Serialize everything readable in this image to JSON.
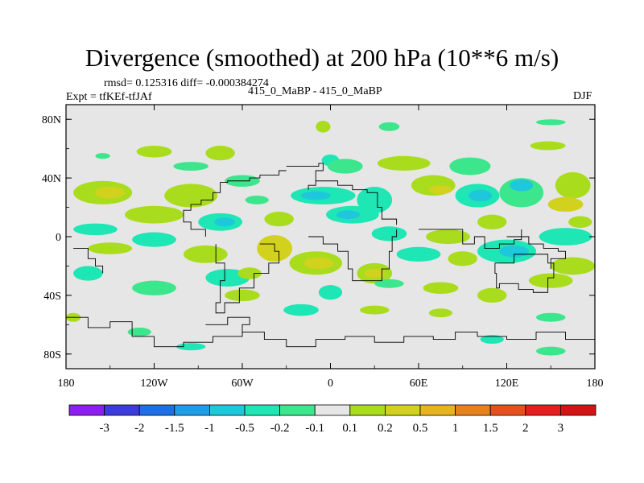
{
  "chart_data": {
    "type": "heatmap",
    "title": "Divergence (smoothed) at 200 hPa (10**6 m/s)",
    "stats_text": "rmsd= 0.125316  diff= -0.000384274",
    "left_label": "Expt = tfKEf-tfJAf",
    "center_label": "415_0_MaBP - 415_0_MaBP",
    "right_label": "DJF",
    "x_range": [
      -180,
      180
    ],
    "y_range": [
      -90,
      90
    ],
    "x_tick_labels": [
      "180",
      "120W",
      "60W",
      "0",
      "60E",
      "120E",
      "180"
    ],
    "x_tick_values": [
      -180,
      -120,
      -60,
      0,
      60,
      120,
      180
    ],
    "y_tick_labels": [
      "80N",
      "40N",
      "0",
      "40S",
      "80S"
    ],
    "y_tick_values": [
      80,
      40,
      0,
      -40,
      -80
    ],
    "colorbar": {
      "levels": [
        "-3",
        "-2",
        "-1.5",
        "-1",
        "-0.5",
        "-0.2",
        "-0.1",
        "0.1",
        "0.2",
        "0.5",
        "1",
        "1.5",
        "2",
        "3"
      ],
      "colors": [
        "#8c1ef0",
        "#3c3cdc",
        "#1e6ee6",
        "#1e9ee6",
        "#1ec8dc",
        "#1ee6b4",
        "#3ce68c",
        "#e6e6e6",
        "#aadc1e",
        "#d2d21e",
        "#e6b41e",
        "#e6821e",
        "#e6501e",
        "#e61e1e",
        "#d21414"
      ]
    },
    "fill_colors": {
      "background": "#e6e6e6",
      "cyan": "#1ec8dc",
      "teal": "#1ee6b4",
      "green": "#3ce68c",
      "lime": "#aadc1e",
      "olive": "#d2d21e",
      "orange": "#e6b41e"
    },
    "features": [
      {
        "lon": -120,
        "lat": 58,
        "rx": 12,
        "ry": 4,
        "c": "lime"
      },
      {
        "lon": -155,
        "lat": 55,
        "rx": 5,
        "ry": 2,
        "c": "green"
      },
      {
        "lon": -75,
        "lat": 57,
        "rx": 10,
        "ry": 5,
        "c": "lime"
      },
      {
        "lon": -95,
        "lat": 48,
        "rx": 12,
        "ry": 3,
        "c": "green"
      },
      {
        "lon": -5,
        "lat": 75,
        "rx": 5,
        "ry": 4,
        "c": "lime"
      },
      {
        "lon": 40,
        "lat": 75,
        "rx": 7,
        "ry": 3,
        "c": "green"
      },
      {
        "lon": 150,
        "lat": 78,
        "rx": 10,
        "ry": 2,
        "c": "green"
      },
      {
        "lon": 148,
        "lat": 62,
        "rx": 12,
        "ry": 3,
        "c": "lime"
      },
      {
        "lon": -60,
        "lat": 38,
        "rx": 12,
        "ry": 4,
        "c": "green"
      },
      {
        "lon": 0,
        "lat": 52,
        "rx": 6,
        "ry": 4,
        "c": "teal"
      },
      {
        "lon": 10,
        "lat": 48,
        "rx": 12,
        "ry": 5,
        "c": "green"
      },
      {
        "lon": 50,
        "lat": 50,
        "rx": 18,
        "ry": 5,
        "c": "lime"
      },
      {
        "lon": 95,
        "lat": 48,
        "rx": 14,
        "ry": 6,
        "c": "green"
      },
      {
        "lon": 130,
        "lat": 30,
        "rx": 15,
        "ry": 10,
        "c": "green"
      },
      {
        "lon": 165,
        "lat": 35,
        "rx": 12,
        "ry": 9,
        "c": "lime"
      },
      {
        "lon": 160,
        "lat": 22,
        "rx": 12,
        "ry": 5,
        "c": "olive"
      },
      {
        "lon": -155,
        "lat": 30,
        "rx": 20,
        "ry": 8,
        "c": "lime"
      },
      {
        "lon": -150,
        "lat": 30,
        "rx": 10,
        "ry": 4,
        "c": "olive"
      },
      {
        "lon": -95,
        "lat": 28,
        "rx": 18,
        "ry": 8,
        "c": "lime"
      },
      {
        "lon": -50,
        "lat": 25,
        "rx": 8,
        "ry": 3,
        "c": "green"
      },
      {
        "lon": -5,
        "lat": 28,
        "rx": 22,
        "ry": 6,
        "c": "teal"
      },
      {
        "lon": -10,
        "lat": 28,
        "rx": 10,
        "ry": 3,
        "c": "cyan"
      },
      {
        "lon": 30,
        "lat": 25,
        "rx": 12,
        "ry": 9,
        "c": "teal"
      },
      {
        "lon": 70,
        "lat": 35,
        "rx": 15,
        "ry": 7,
        "c": "lime"
      },
      {
        "lon": 75,
        "lat": 32,
        "rx": 8,
        "ry": 3,
        "c": "olive"
      },
      {
        "lon": 100,
        "lat": 28,
        "rx": 15,
        "ry": 8,
        "c": "teal"
      },
      {
        "lon": 102,
        "lat": 28,
        "rx": 8,
        "ry": 4,
        "c": "cyan"
      },
      {
        "lon": 130,
        "lat": 35,
        "rx": 8,
        "ry": 4,
        "c": "cyan"
      },
      {
        "lon": -160,
        "lat": 5,
        "rx": 15,
        "ry": 4,
        "c": "teal"
      },
      {
        "lon": -120,
        "lat": 15,
        "rx": 20,
        "ry": 6,
        "c": "lime"
      },
      {
        "lon": -75,
        "lat": 10,
        "rx": 15,
        "ry": 6,
        "c": "teal"
      },
      {
        "lon": -72,
        "lat": 10,
        "rx": 7,
        "ry": 3,
        "c": "cyan"
      },
      {
        "lon": -35,
        "lat": 12,
        "rx": 10,
        "ry": 5,
        "c": "lime"
      },
      {
        "lon": 15,
        "lat": 15,
        "rx": 18,
        "ry": 6,
        "c": "teal"
      },
      {
        "lon": 12,
        "lat": 15,
        "rx": 8,
        "ry": 3,
        "c": "cyan"
      },
      {
        "lon": 40,
        "lat": 2,
        "rx": 12,
        "ry": 5,
        "c": "teal"
      },
      {
        "lon": 80,
        "lat": 0,
        "rx": 15,
        "ry": 5,
        "c": "lime"
      },
      {
        "lon": 110,
        "lat": 10,
        "rx": 10,
        "ry": 5,
        "c": "lime"
      },
      {
        "lon": 160,
        "lat": 0,
        "rx": 18,
        "ry": 6,
        "c": "teal"
      },
      {
        "lon": 170,
        "lat": 10,
        "rx": 8,
        "ry": 4,
        "c": "lime"
      },
      {
        "lon": -150,
        "lat": -8,
        "rx": 15,
        "ry": 4,
        "c": "lime"
      },
      {
        "lon": -120,
        "lat": -2,
        "rx": 15,
        "ry": 5,
        "c": "teal"
      },
      {
        "lon": -85,
        "lat": -12,
        "rx": 15,
        "ry": 6,
        "c": "lime"
      },
      {
        "lon": -38,
        "lat": -8,
        "rx": 12,
        "ry": 9,
        "c": "olive"
      },
      {
        "lon": -10,
        "lat": -18,
        "rx": 18,
        "ry": 8,
        "c": "lime"
      },
      {
        "lon": -8,
        "lat": -18,
        "rx": 10,
        "ry": 4,
        "c": "olive"
      },
      {
        "lon": 30,
        "lat": -25,
        "rx": 12,
        "ry": 7,
        "c": "lime"
      },
      {
        "lon": 30,
        "lat": -25,
        "rx": 7,
        "ry": 3,
        "c": "olive"
      },
      {
        "lon": 60,
        "lat": -12,
        "rx": 15,
        "ry": 5,
        "c": "teal"
      },
      {
        "lon": 90,
        "lat": -15,
        "rx": 10,
        "ry": 5,
        "c": "lime"
      },
      {
        "lon": 120,
        "lat": -10,
        "rx": 20,
        "ry": 8,
        "c": "teal"
      },
      {
        "lon": 125,
        "lat": -10,
        "rx": 10,
        "ry": 4,
        "c": "cyan"
      },
      {
        "lon": 165,
        "lat": -20,
        "rx": 15,
        "ry": 6,
        "c": "lime"
      },
      {
        "lon": -165,
        "lat": -25,
        "rx": 10,
        "ry": 5,
        "c": "teal"
      },
      {
        "lon": -70,
        "lat": -28,
        "rx": 15,
        "ry": 6,
        "c": "teal"
      },
      {
        "lon": -55,
        "lat": -25,
        "rx": 8,
        "ry": 4,
        "c": "lime"
      },
      {
        "lon": 0,
        "lat": -38,
        "rx": 8,
        "ry": 5,
        "c": "teal"
      },
      {
        "lon": 40,
        "lat": -32,
        "rx": 10,
        "ry": 3,
        "c": "green"
      },
      {
        "lon": 75,
        "lat": -35,
        "rx": 12,
        "ry": 4,
        "c": "lime"
      },
      {
        "lon": 110,
        "lat": -40,
        "rx": 10,
        "ry": 5,
        "c": "lime"
      },
      {
        "lon": 150,
        "lat": -30,
        "rx": 15,
        "ry": 5,
        "c": "lime"
      },
      {
        "lon": -120,
        "lat": -35,
        "rx": 15,
        "ry": 5,
        "c": "green"
      },
      {
        "lon": -60,
        "lat": -40,
        "rx": 12,
        "ry": 4,
        "c": "lime"
      },
      {
        "lon": -20,
        "lat": -50,
        "rx": 12,
        "ry": 4,
        "c": "teal"
      },
      {
        "lon": 30,
        "lat": -50,
        "rx": 10,
        "ry": 3,
        "c": "lime"
      },
      {
        "lon": 75,
        "lat": -52,
        "rx": 8,
        "ry": 3,
        "c": "lime"
      },
      {
        "lon": 150,
        "lat": -55,
        "rx": 10,
        "ry": 3,
        "c": "green"
      },
      {
        "lon": -175,
        "lat": -55,
        "rx": 5,
        "ry": 3,
        "c": "lime"
      },
      {
        "lon": -130,
        "lat": -65,
        "rx": 8,
        "ry": 3,
        "c": "green"
      },
      {
        "lon": -95,
        "lat": -75,
        "rx": 10,
        "ry": 2.5,
        "c": "teal"
      },
      {
        "lon": 110,
        "lat": -70,
        "rx": 8,
        "ry": 3,
        "c": "teal"
      },
      {
        "lon": 150,
        "lat": -78,
        "rx": 10,
        "ry": 3,
        "c": "green"
      }
    ],
    "coastlines": [
      {
        "name": "north-america-coast",
        "points": [
          [
            -30,
            45
          ],
          [
            -35,
            42
          ],
          [
            -48,
            40
          ],
          [
            -55,
            38
          ],
          [
            -70,
            37
          ],
          [
            -75,
            30
          ],
          [
            -80,
            25
          ],
          [
            -88,
            22
          ],
          [
            -95,
            18
          ],
          [
            -100,
            10
          ],
          [
            -95,
            5
          ],
          [
            -85,
            0
          ]
        ]
      },
      {
        "name": "greenland-coast",
        "points": [
          [
            -30,
            48
          ],
          [
            -8,
            50
          ],
          [
            -5,
            45
          ],
          [
            -10,
            35
          ],
          [
            -15,
            32
          ]
        ]
      },
      {
        "name": "africa-coast",
        "points": [
          [
            -15,
            0
          ],
          [
            -5,
            -5
          ],
          [
            5,
            -10
          ],
          [
            12,
            -22
          ],
          [
            15,
            -30
          ],
          [
            25,
            -30
          ],
          [
            35,
            -22
          ],
          [
            40,
            -10
          ],
          [
            42,
            0
          ],
          [
            45,
            5
          ]
        ]
      },
      {
        "name": "europe-coast",
        "points": [
          [
            -10,
            38
          ],
          [
            0,
            38
          ],
          [
            5,
            35
          ],
          [
            15,
            32
          ],
          [
            25,
            30
          ],
          [
            32,
            20
          ],
          [
            35,
            12
          ],
          [
            45,
            8
          ]
        ]
      },
      {
        "name": "asia-coast",
        "points": [
          [
            60,
            5
          ],
          [
            75,
            5
          ],
          [
            90,
            -5
          ],
          [
            98,
            0
          ],
          [
            105,
            -8
          ],
          [
            115,
            -5
          ],
          [
            125,
            -2
          ],
          [
            130,
            5
          ]
        ]
      },
      {
        "name": "south-america-coast",
        "points": [
          [
            -48,
            -5
          ],
          [
            -38,
            -10
          ],
          [
            -35,
            -18
          ],
          [
            -42,
            -25
          ],
          [
            -52,
            -35
          ],
          [
            -62,
            -45
          ],
          [
            -72,
            -52
          ],
          [
            -78,
            -45
          ],
          [
            -75,
            -30
          ],
          [
            -72,
            -18
          ],
          [
            -78,
            -5
          ]
        ]
      },
      {
        "name": "indonesia-coast",
        "points": [
          [
            120,
            0
          ],
          [
            135,
            -5
          ],
          [
            145,
            -8
          ],
          [
            155,
            -10
          ],
          [
            160,
            -15
          ],
          [
            150,
            -22
          ]
        ]
      },
      {
        "name": "australia-coast",
        "points": [
          [
            112,
            -18
          ],
          [
            125,
            -12
          ],
          [
            135,
            -12
          ],
          [
            142,
            -12
          ],
          [
            148,
            -18
          ],
          [
            152,
            -28
          ],
          [
            148,
            -38
          ],
          [
            138,
            -36
          ],
          [
            128,
            -32
          ],
          [
            115,
            -35
          ],
          [
            113,
            -25
          ],
          [
            112,
            -18
          ]
        ]
      },
      {
        "name": "pacific-islands-coast",
        "points": [
          [
            -175,
            -8
          ],
          [
            -165,
            -15
          ],
          [
            -160,
            -20
          ],
          [
            -155,
            -25
          ]
        ]
      },
      {
        "name": "antarctica-coast",
        "points": [
          [
            -180,
            -55
          ],
          [
            -165,
            -62
          ],
          [
            -150,
            -58
          ],
          [
            -135,
            -68
          ],
          [
            -120,
            -75
          ],
          [
            -100,
            -72
          ],
          [
            -80,
            -68
          ],
          [
            -60,
            -65
          ],
          [
            -45,
            -70
          ],
          [
            -30,
            -75
          ],
          [
            -10,
            -70
          ],
          [
            10,
            -68
          ],
          [
            30,
            -72
          ],
          [
            50,
            -68
          ],
          [
            70,
            -70
          ],
          [
            85,
            -65
          ],
          [
            100,
            -68
          ],
          [
            120,
            -70
          ],
          [
            140,
            -65
          ],
          [
            160,
            -70
          ],
          [
            180,
            -62
          ]
        ]
      },
      {
        "name": "antarctic-peninsula-coast",
        "points": [
          [
            -85,
            -60
          ],
          [
            -70,
            -55
          ],
          [
            -55,
            -60
          ],
          [
            -60,
            -66
          ]
        ]
      }
    ]
  }
}
